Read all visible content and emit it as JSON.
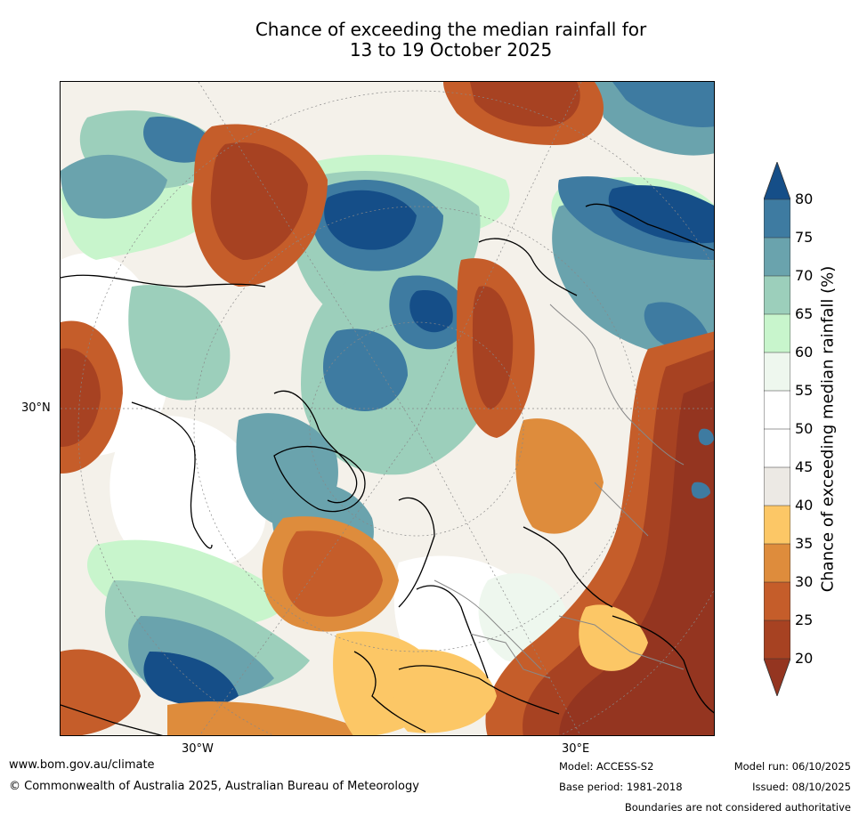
{
  "title": {
    "line1": "Chance of exceeding the median rainfall for",
    "line2": "13 to 19 October 2025"
  },
  "map": {
    "lat_labels": [
      {
        "text": "30°N"
      }
    ],
    "lon_labels": [
      {
        "text": "30°W"
      },
      {
        "text": "30°E"
      }
    ],
    "palette": {
      "dark_blue": "#154e88",
      "blue": "#3e7ba1",
      "teal": "#6aa3ad",
      "sea_green": "#9ccfbb",
      "light_green": "#c8f5cc",
      "pale_green": "#eef7ee",
      "white": "#ffffff",
      "light_grey": "#ece9e4",
      "yellow_orange": "#fcc766",
      "orange": "#de8c3c",
      "burnt_orange": "#c55d2a",
      "rust": "#a74222",
      "dark_rust": "#943520",
      "coast": "#000000",
      "border": "#888888"
    }
  },
  "colorbar": {
    "label": "Chance of exceeding median rainfall (%)",
    "ticks": [
      "80",
      "75",
      "70",
      "65",
      "60",
      "55",
      "50",
      "45",
      "40",
      "35",
      "30",
      "25",
      "20"
    ],
    "colors": [
      "#154e88",
      "#3e7ba1",
      "#6aa3ad",
      "#9ccfbb",
      "#c8f5cc",
      "#eef7ee",
      "#ffffff",
      "#ffffff",
      "#ece9e4",
      "#fcc766",
      "#de8c3c",
      "#c55d2a",
      "#a74222",
      "#943520"
    ]
  },
  "footer": {
    "website": "www.bom.gov.au/climate",
    "copyright": "© Commonwealth of Australia 2025, Australian Bureau of Meteorology",
    "model": "Model: ACCESS-S2",
    "base_period": "Base period: 1981-2018",
    "model_run": "Model run: 06/10/2025",
    "issued": "Issued: 08/10/2025",
    "disclaimer": "Boundaries are not considered authoritative"
  }
}
